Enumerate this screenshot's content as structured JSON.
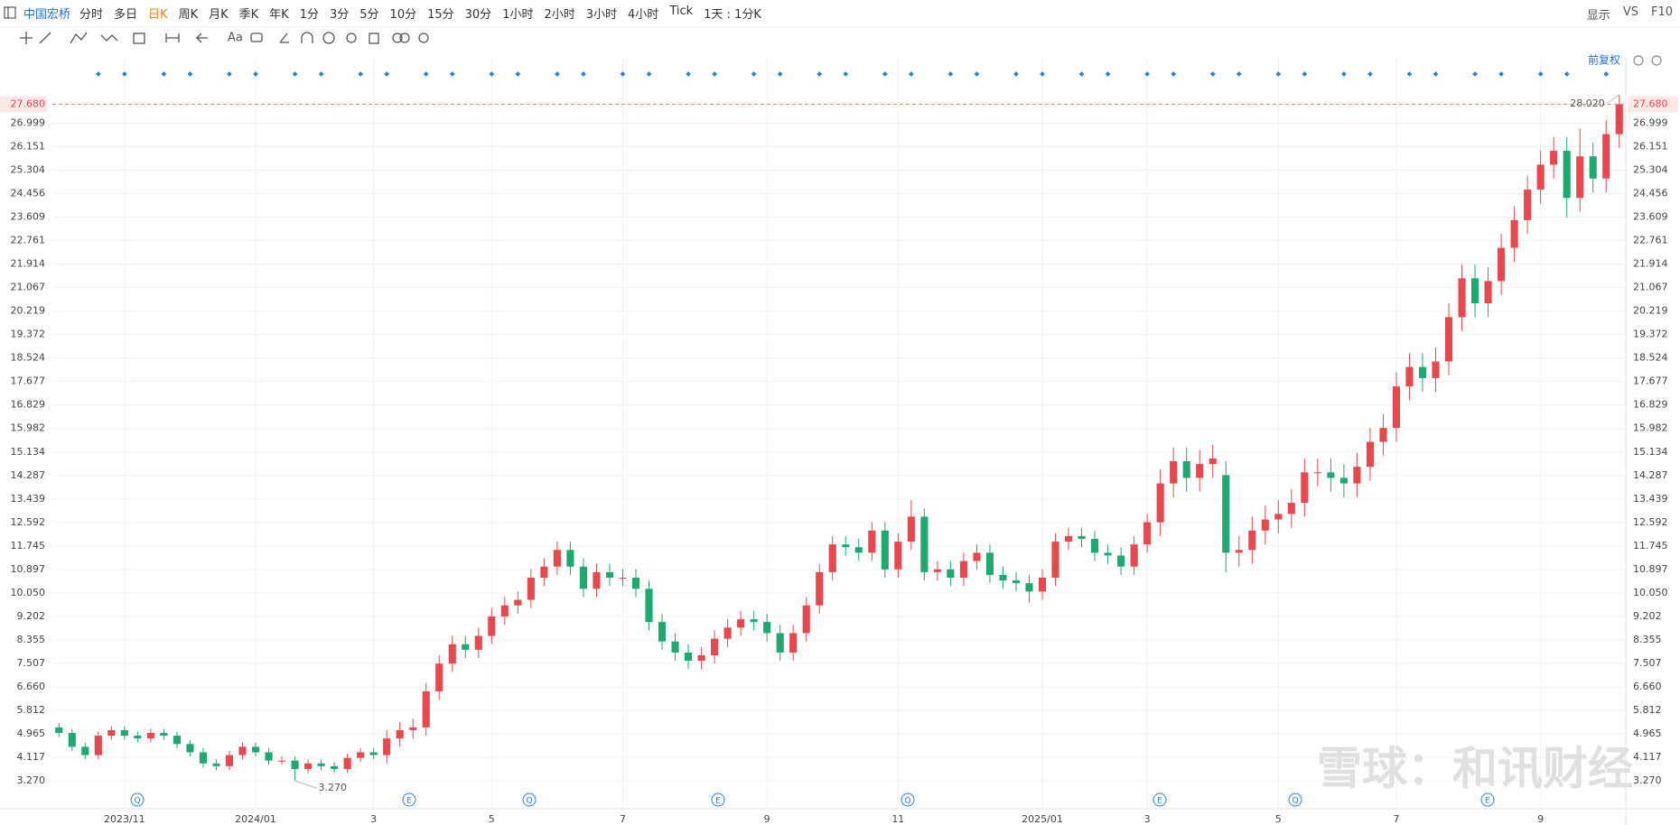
{
  "toolbar": {
    "symbol": "中国宏桥",
    "periods": [
      "分时",
      "多日",
      "日K",
      "周K",
      "月K",
      "季K",
      "年K",
      "1分",
      "3分",
      "5分",
      "10分",
      "15分",
      "30分",
      "1小时",
      "2小时",
      "3小时",
      "4小时",
      "Tick",
      "1天 : 1分K"
    ],
    "right": [
      "显示",
      "VS",
      "F10"
    ],
    "text_tool": "Aa",
    "adjust": "前复权"
  },
  "chart_data": {
    "type": "candlestick",
    "categories": [
      null,
      null,
      null,
      null,
      null,
      "2023/11",
      null,
      null,
      null,
      null,
      null,
      null,
      null,
      null,
      null,
      "2024/01",
      null,
      null,
      null,
      null,
      null,
      null,
      null,
      null,
      "3",
      null,
      null,
      null,
      null,
      null,
      null,
      null,
      null,
      "5",
      null,
      null,
      null,
      null,
      null,
      null,
      null,
      null,
      null,
      "7",
      null,
      null,
      null,
      null,
      null,
      null,
      null,
      null,
      null,
      null,
      "9",
      null,
      null,
      null,
      null,
      null,
      null,
      null,
      null,
      null,
      "11",
      null,
      null,
      null,
      null,
      null,
      null,
      null,
      null,
      null,
      null,
      "2025/01",
      null,
      null,
      null,
      null,
      null,
      null,
      null,
      "3",
      null,
      null,
      null,
      null,
      null,
      null,
      null,
      null,
      null,
      "5",
      null,
      null,
      null,
      null,
      null,
      null,
      null,
      null,
      "7",
      null,
      null,
      null,
      null,
      null,
      null,
      null,
      null,
      null,
      null,
      "9",
      null,
      null,
      null,
      null,
      null,
      null
    ],
    "open": [
      5.2,
      5.0,
      4.5,
      4.2,
      4.9,
      5.1,
      4.9,
      4.8,
      5.0,
      4.9,
      4.6,
      4.3,
      3.9,
      3.8,
      4.2,
      4.5,
      4.3,
      4.0,
      4.0,
      3.7,
      3.9,
      3.8,
      3.7,
      4.1,
      4.3,
      4.2,
      4.8,
      5.1,
      5.2,
      6.5,
      7.5,
      8.2,
      8.0,
      8.5,
      9.2,
      9.6,
      9.8,
      10.6,
      11.0,
      11.6,
      11.0,
      10.2,
      10.8,
      10.6,
      10.6,
      10.2,
      9.0,
      8.3,
      7.9,
      7.6,
      7.8,
      8.4,
      8.8,
      9.1,
      9.0,
      8.6,
      7.9,
      8.6,
      9.6,
      10.8,
      11.8,
      11.7,
      11.5,
      12.3,
      10.9,
      11.9,
      12.8,
      10.8,
      10.9,
      10.6,
      11.2,
      11.5,
      10.7,
      10.5,
      10.4,
      10.1,
      10.6,
      11.9,
      12.1,
      12.0,
      11.5,
      11.4,
      11.0,
      11.8,
      12.6,
      14.0,
      14.8,
      14.2,
      14.7,
      14.3,
      11.5,
      11.6,
      12.3,
      12.7,
      12.9,
      13.3,
      14.4,
      14.4,
      14.2,
      14.0,
      14.6,
      15.5,
      16.0,
      17.5,
      18.2,
      17.8,
      18.4,
      20.0,
      21.4,
      20.5,
      21.3,
      22.5,
      23.5,
      24.6,
      25.5,
      26.0,
      24.3,
      25.8,
      25.0,
      26.6
    ],
    "high": [
      5.35,
      5.15,
      4.65,
      5.05,
      5.25,
      5.25,
      5.05,
      5.15,
      5.15,
      5.05,
      4.75,
      4.45,
      4.05,
      4.35,
      4.65,
      4.65,
      4.45,
      4.15,
      4.15,
      4.05,
      4.05,
      3.95,
      4.25,
      4.45,
      4.45,
      5.1,
      5.4,
      5.5,
      6.8,
      7.8,
      8.5,
      8.5,
      8.8,
      9.5,
      9.9,
      10.1,
      10.9,
      11.3,
      11.9,
      11.9,
      11.3,
      11.1,
      11.1,
      10.9,
      10.9,
      10.5,
      9.3,
      8.6,
      8.2,
      8.1,
      8.7,
      9.1,
      9.4,
      9.4,
      9.3,
      8.9,
      8.9,
      9.9,
      11.1,
      12.1,
      12.1,
      12.0,
      12.6,
      12.6,
      12.2,
      13.4,
      13.1,
      11.2,
      11.2,
      11.5,
      11.8,
      11.8,
      11.0,
      10.8,
      10.7,
      10.9,
      12.2,
      12.4,
      12.4,
      12.3,
      11.8,
      11.7,
      12.1,
      12.9,
      14.5,
      15.3,
      15.3,
      15.2,
      15.4,
      14.8,
      12.1,
      12.8,
      13.2,
      13.4,
      13.8,
      14.9,
      14.9,
      14.9,
      14.7,
      15.1,
      16.0,
      16.5,
      18.0,
      18.7,
      18.7,
      18.9,
      20.5,
      21.9,
      21.9,
      21.8,
      23.0,
      24.0,
      25.1,
      26.0,
      26.5,
      26.5,
      26.8,
      26.3,
      27.1,
      28.02
    ],
    "low": [
      4.85,
      4.35,
      4.05,
      4.05,
      4.75,
      4.75,
      4.65,
      4.65,
      4.75,
      4.45,
      4.15,
      3.75,
      3.65,
      3.65,
      4.05,
      4.15,
      3.85,
      3.85,
      3.27,
      3.55,
      3.65,
      3.55,
      3.55,
      3.95,
      4.05,
      3.9,
      4.5,
      4.8,
      4.9,
      6.2,
      7.2,
      7.7,
      7.7,
      8.2,
      8.9,
      9.3,
      9.5,
      10.3,
      10.7,
      10.7,
      9.9,
      9.9,
      10.3,
      10.3,
      9.9,
      8.7,
      8.0,
      7.6,
      7.3,
      7.3,
      7.5,
      8.1,
      8.5,
      8.7,
      8.3,
      7.6,
      7.6,
      8.3,
      9.3,
      10.5,
      11.4,
      11.2,
      11.2,
      10.6,
      10.6,
      11.6,
      10.5,
      10.5,
      10.3,
      10.3,
      10.9,
      10.4,
      10.2,
      10.1,
      9.7,
      9.8,
      10.3,
      11.6,
      11.7,
      11.2,
      11.1,
      10.7,
      10.7,
      11.5,
      12.1,
      13.5,
      13.7,
      13.7,
      14.2,
      10.8,
      11.0,
      11.1,
      11.8,
      12.2,
      12.4,
      12.8,
      13.9,
      13.7,
      13.5,
      13.5,
      14.1,
      15.0,
      15.5,
      17.0,
      17.3,
      17.3,
      17.9,
      19.5,
      20.0,
      20.0,
      20.8,
      22.0,
      23.0,
      24.1,
      25.0,
      23.6,
      23.8,
      24.5,
      24.5,
      26.1
    ],
    "close": [
      5.0,
      4.5,
      4.2,
      4.9,
      5.1,
      4.9,
      4.8,
      5.0,
      4.9,
      4.6,
      4.3,
      3.9,
      3.8,
      4.2,
      4.5,
      4.3,
      4.0,
      4.0,
      3.7,
      3.9,
      3.8,
      3.7,
      4.1,
      4.3,
      4.2,
      4.8,
      5.1,
      5.2,
      6.5,
      7.5,
      8.2,
      8.0,
      8.5,
      9.2,
      9.6,
      9.8,
      10.6,
      11.0,
      11.6,
      11.0,
      10.2,
      10.8,
      10.6,
      10.6,
      10.2,
      9.0,
      8.3,
      7.9,
      7.6,
      7.8,
      8.4,
      8.8,
      9.1,
      9.0,
      8.6,
      7.9,
      8.6,
      9.6,
      10.8,
      11.8,
      11.7,
      11.5,
      12.3,
      10.9,
      11.9,
      12.8,
      10.8,
      10.9,
      10.6,
      11.2,
      11.5,
      10.7,
      10.5,
      10.4,
      10.1,
      10.6,
      11.9,
      12.1,
      12.0,
      11.5,
      11.4,
      11.0,
      11.8,
      12.6,
      14.0,
      14.8,
      14.2,
      14.7,
      14.9,
      11.5,
      11.6,
      12.3,
      12.7,
      12.9,
      13.3,
      14.4,
      14.4,
      14.2,
      14.0,
      14.6,
      15.5,
      16.0,
      17.5,
      18.2,
      17.8,
      18.4,
      20.0,
      21.4,
      20.5,
      21.3,
      22.5,
      23.5,
      24.6,
      25.5,
      26.0,
      24.3,
      25.8,
      25.0,
      26.6,
      27.68
    ],
    "up_color": "#e5484d",
    "down_color": "#1fa870",
    "ylim": [
      2.46,
      29.03
    ],
    "yticks": [
      {
        "value": 3.27,
        "label": "3.270"
      },
      {
        "value": 4.117,
        "label": "4.117"
      },
      {
        "value": 4.965,
        "label": "4.965"
      },
      {
        "value": 5.812,
        "label": "5.812"
      },
      {
        "value": 6.66,
        "label": "6.660"
      },
      {
        "value": 7.507,
        "label": "7.507"
      },
      {
        "value": 8.355,
        "label": "8.355"
      },
      {
        "value": 9.202,
        "label": "9.202"
      },
      {
        "value": 10.05,
        "label": "10.050"
      },
      {
        "value": 10.897,
        "label": "10.897"
      },
      {
        "value": 11.745,
        "label": "11.745"
      },
      {
        "value": 12.592,
        "label": "12.592"
      },
      {
        "value": 13.439,
        "label": "13.439"
      },
      {
        "value": 14.287,
        "label": "14.287"
      },
      {
        "value": 15.134,
        "label": "15.134"
      },
      {
        "value": 15.982,
        "label": "15.982"
      },
      {
        "value": 16.829,
        "label": "16.829"
      },
      {
        "value": 17.677,
        "label": "17.677"
      },
      {
        "value": 18.524,
        "label": "18.524"
      },
      {
        "value": 19.372,
        "label": "19.372"
      },
      {
        "value": 20.219,
        "label": "20.219"
      },
      {
        "value": 21.067,
        "label": "21.067"
      },
      {
        "value": 21.914,
        "label": "21.914"
      },
      {
        "value": 22.761,
        "label": "22.761"
      },
      {
        "value": 23.609,
        "label": "23.609"
      },
      {
        "value": 24.456,
        "label": "24.456"
      },
      {
        "value": 25.304,
        "label": "25.304"
      },
      {
        "value": 26.151,
        "label": "26.151"
      },
      {
        "value": 26.999,
        "label": "26.999"
      }
    ],
    "grid": true,
    "last_price": {
      "value": 27.68,
      "label": "27.680"
    },
    "max_label": {
      "value": 28.02,
      "label": "28.020"
    },
    "min_label": {
      "value": 3.27,
      "label": "3.270"
    },
    "events": [
      "Q",
      "E",
      "Q",
      "E",
      "Q",
      "E",
      "Q",
      "E"
    ],
    "watermark": "雪球：和讯财经"
  }
}
